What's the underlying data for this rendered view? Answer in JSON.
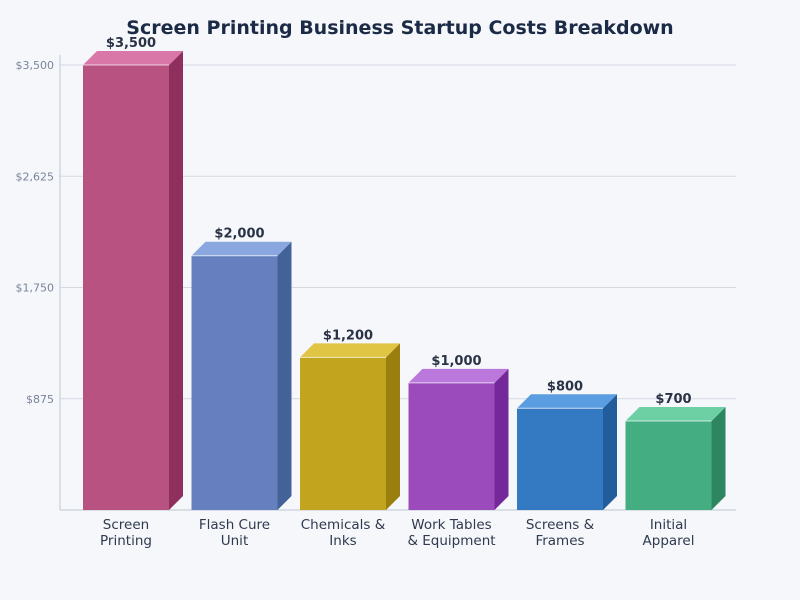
{
  "chart_data": {
    "type": "bar",
    "title": "Screen Printing Business Startup Costs Breakdown",
    "xlabel": "",
    "ylabel": "",
    "categories": [
      [
        "Screen",
        "Printing"
      ],
      [
        "Flash Cure",
        "Unit"
      ],
      [
        "Chemicals &",
        "Inks"
      ],
      [
        "Work Tables",
        "& Equipment"
      ],
      [
        "Screens &",
        "Frames"
      ],
      [
        "Initial",
        "Apparel"
      ]
    ],
    "values": [
      3500,
      2000,
      1200,
      1000,
      800,
      700
    ],
    "data_labels": [
      "$3,500",
      "$2,000",
      "$1,200",
      "$1,000",
      "$800",
      "$700"
    ],
    "ylim": [
      0,
      3500
    ],
    "yticks": [
      875,
      1750,
      2625,
      3500
    ],
    "ytick_labels": [
      "$875",
      "$1,750",
      "$2,625",
      "$3,500"
    ],
    "grid": true,
    "style": "3d-bar",
    "colors": [
      {
        "front": "#b85280",
        "side": "#8e2f5e",
        "top": "#d977a8"
      },
      {
        "front": "#6680bf",
        "side": "#436297",
        "top": "#8ba7e0"
      },
      {
        "front": "#c2a41e",
        "side": "#9a7f0f",
        "top": "#e0c444"
      },
      {
        "front": "#9b4bbb",
        "side": "#74289a",
        "top": "#bb78dc"
      },
      {
        "front": "#347ac3",
        "side": "#225c9a",
        "top": "#5a9de0"
      },
      {
        "front": "#45ad82",
        "side": "#2e8660",
        "top": "#6dd0a5"
      }
    ]
  }
}
